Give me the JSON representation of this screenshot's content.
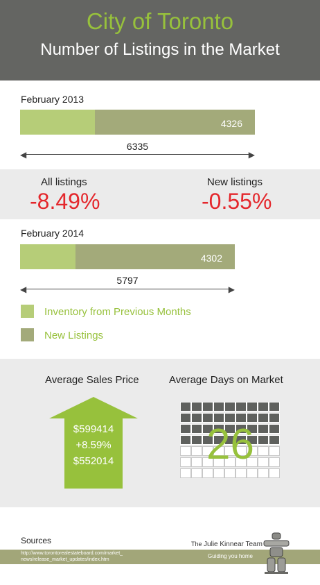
{
  "header": {
    "city": "City of Toronto",
    "subtitle": "Number of Listings in the Market"
  },
  "colors": {
    "header_bg": "#646562",
    "accent_green": "#97c13c",
    "inventory_color": "#b6cd78",
    "new_listings_color": "#a3aa7a",
    "negative_red": "#e4272c"
  },
  "chart_data": {
    "type": "bar",
    "categories": [
      "February 2013",
      "February 2014"
    ],
    "series": [
      {
        "name": "Inventory from Previous Months",
        "values": [
          2009,
          1495
        ]
      },
      {
        "name": "New Listings",
        "values": [
          4326,
          4302
        ]
      }
    ],
    "totals": [
      6335,
      5797
    ],
    "stacked": true,
    "orientation": "horizontal",
    "legend_position": "below"
  },
  "feb2013": {
    "label": "February 2013",
    "new_listings": "4326",
    "total": "6335"
  },
  "feb2014": {
    "label": "February 2014",
    "new_listings": "4302",
    "total": "5797"
  },
  "changes": {
    "all_label": "All listings",
    "all_value": "-8.49%",
    "new_label": "New listings",
    "new_value": "-0.55%"
  },
  "legend": {
    "inventory": "Inventory from Previous Months",
    "new": "New Listings"
  },
  "stats": {
    "price_title": "Average Sales Price",
    "price_current": "$599414",
    "price_change": "+8.59%",
    "price_previous": "$552014",
    "price_icon": "up-arrow-icon",
    "days_title": "Average Days on Market",
    "days_value": "26",
    "days_icon": "calendar-grid-icon"
  },
  "sources": {
    "title": "Sources",
    "url_line1": "http://www.torontorealestateboard.com/market_",
    "url_line2": "news/release_market_updates/index.htm"
  },
  "brand": {
    "prefix": "The",
    "name": "Julie Kinnear Team",
    "tagline": "Guiding you home",
    "logo_icon": "inukshuk-icon"
  }
}
